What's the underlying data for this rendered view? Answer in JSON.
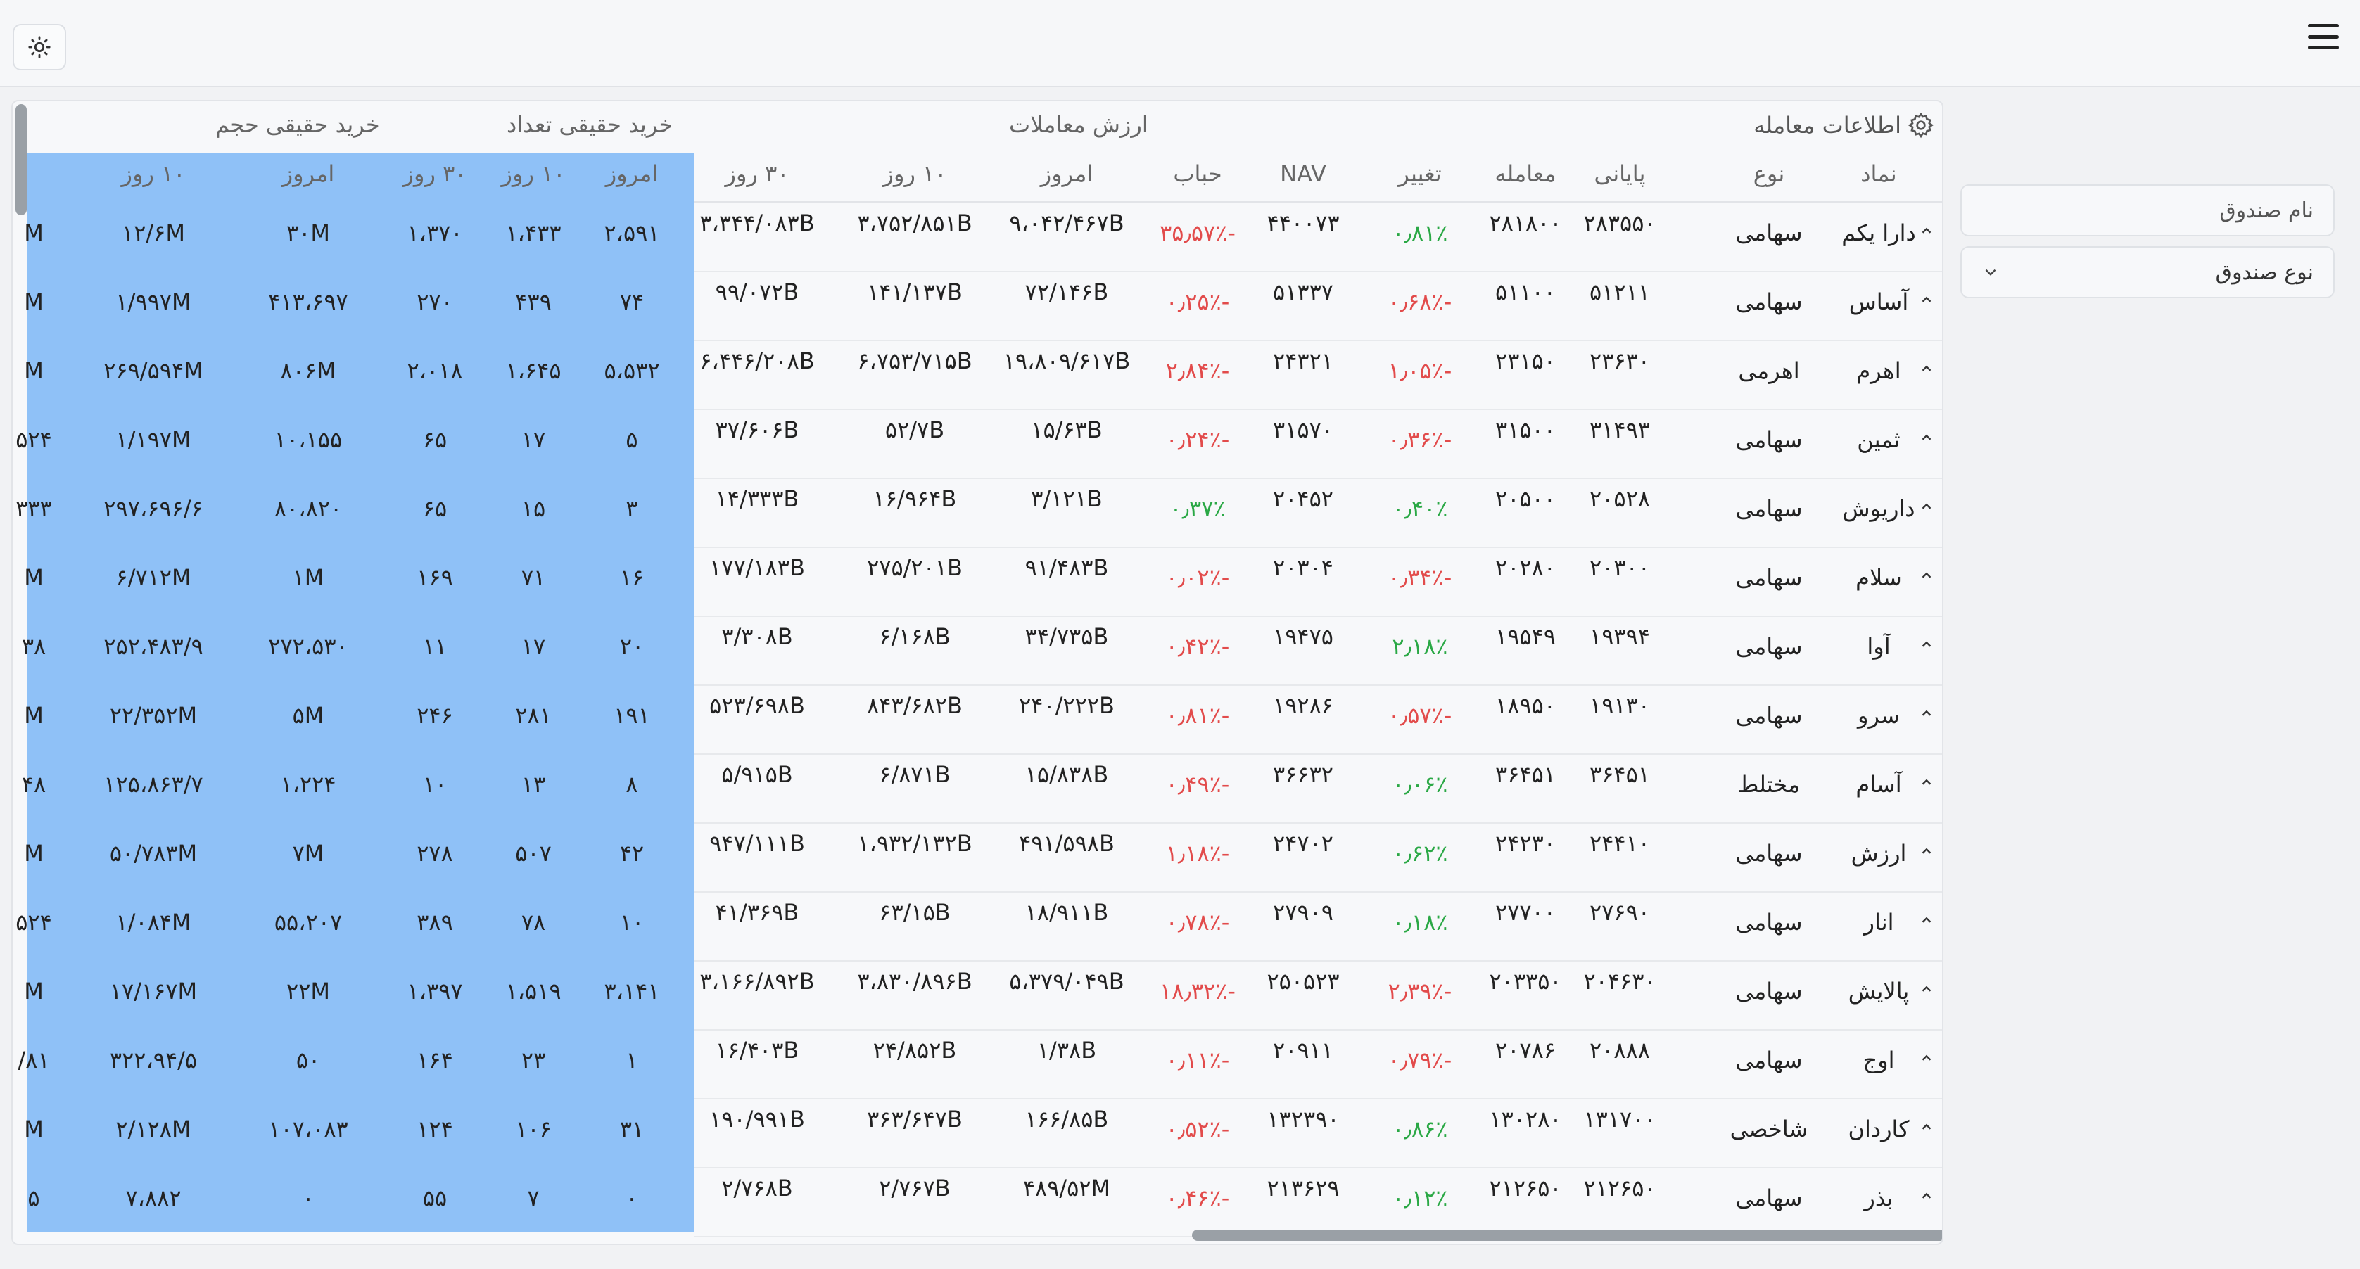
{
  "filters": {
    "fund_name_placeholder": "نام صندوق",
    "fund_type_label": "نوع صندوق"
  },
  "table": {
    "groups": {
      "trade_info": "اطلاعات معامله",
      "trade_value": "ارزش معاملات",
      "real_buy_count": "خرید حقیقی تعداد",
      "real_buy_volume": "خرید حقیقی حجم"
    },
    "headers": {
      "symbol": "نماد",
      "type": "نوع",
      "final": "پایانی",
      "trade": "معامله",
      "change": "تغییر",
      "nav": "NAV",
      "bubble": "حباب",
      "tv_today": "امروز",
      "tv_10d": "۱۰ روز",
      "tv_30d": "۳۰ روز",
      "rc_today": "امروز",
      "rc_10d": "۱۰ روز",
      "rc_30d": "۳۰ روز",
      "rv_today": "امروز",
      "rv_10d": "۱۰ روز"
    },
    "rows": [
      {
        "symbol": "دارا یکم",
        "type": "سهامی",
        "final": "۲۸۳۵۵۰",
        "trade": "۲۸۱۸۰۰",
        "change": "۰٫۸۱٪",
        "change_sign": "pos",
        "nav": "۴۴۰۰۷۳",
        "bubble": "-۳۵٫۵۷٪",
        "tv_today": "۹،۰۴۲/۴۶۷B",
        "tv_10d": "۳،۷۵۲/۸۵۱B",
        "tv_30d": "۳،۳۴۴/۰۸۳B",
        "rc_today": "۲،۵۹۱",
        "rc_10d": "۱،۴۳۳",
        "rc_30d": "۱،۳۷۰",
        "rv_today": "۳۰M",
        "rv_10d": "۱۲/۶M",
        "rv_30d": "M"
      },
      {
        "symbol": "آساس",
        "type": "سهامی",
        "final": "۵۱۲۱۱",
        "trade": "۵۱۱۰۰",
        "change": "-۰٫۶۸٪",
        "change_sign": "neg",
        "nav": "۵۱۳۳۷",
        "bubble": "-۰٫۲۵٪",
        "tv_today": "۷۲/۱۴۶B",
        "tv_10d": "۱۴۱/۱۳۷B",
        "tv_30d": "۹۹/۰۷۲B",
        "rc_today": "۷۴",
        "rc_10d": "۴۳۹",
        "rc_30d": "۲۷۰",
        "rv_today": "۴۱۳،۶۹۷",
        "rv_10d": "۱/۹۹۷M",
        "rv_30d": "M"
      },
      {
        "symbol": "اهرم",
        "type": "اهرمی",
        "final": "۲۳۶۳۰",
        "trade": "۲۳۱۵۰",
        "change": "-۱٫۰۵٪",
        "change_sign": "neg",
        "nav": "۲۴۳۲۱",
        "bubble": "-۲٫۸۴٪",
        "tv_today": "۱۹،۸۰۹/۶۱۷B",
        "tv_10d": "۶،۷۵۳/۷۱۵B",
        "tv_30d": "۶،۴۴۶/۲۰۸B",
        "rc_today": "۵،۵۳۲",
        "rc_10d": "۱،۶۴۵",
        "rc_30d": "۲،۰۱۸",
        "rv_today": "۸۰۶M",
        "rv_10d": "۲۶۹/۵۹۴M",
        "rv_30d": "M"
      },
      {
        "symbol": "ثمین",
        "type": "سهامی",
        "final": "۳۱۴۹۳",
        "trade": "۳۱۵۰۰",
        "change": "-۰٫۳۶٪",
        "change_sign": "neg",
        "nav": "۳۱۵۷۰",
        "bubble": "-۰٫۲۴٪",
        "tv_today": "۱۵/۶۳B",
        "tv_10d": "۵۲/۷B",
        "tv_30d": "۳۷/۶۰۶B",
        "rc_today": "۵",
        "rc_10d": "۱۷",
        "rc_30d": "۶۵",
        "rv_today": "۱۰،۱۵۵",
        "rv_10d": "۱/۱۹۷M",
        "rv_30d": "۵۲۴"
      },
      {
        "symbol": "داریوش",
        "type": "سهامی",
        "final": "۲۰۵۲۸",
        "trade": "۲۰۵۰۰",
        "change": "۰٫۴۰٪",
        "change_sign": "pos",
        "nav": "۲۰۴۵۲",
        "bubble": "۰٫۳۷٪",
        "bubble_sign": "pos",
        "tv_today": "۳/۱۲۱B",
        "tv_10d": "۱۶/۹۶۴B",
        "tv_30d": "۱۴/۳۳۳B",
        "rc_today": "۳",
        "rc_10d": "۱۵",
        "rc_30d": "۶۵",
        "rv_today": "۸۰،۸۲۰",
        "rv_10d": "۲۹۷،۶۹۶/۶",
        "rv_30d": "۳۳۳"
      },
      {
        "symbol": "سلام",
        "type": "سهامی",
        "final": "۲۰۳۰۰",
        "trade": "۲۰۲۸۰",
        "change": "-۰٫۳۴٪",
        "change_sign": "neg",
        "nav": "۲۰۳۰۴",
        "bubble": "-۰٫۰۲٪",
        "tv_today": "۹۱/۴۸۳B",
        "tv_10d": "۲۷۵/۲۰۱B",
        "tv_30d": "۱۷۷/۱۸۳B",
        "rc_today": "۱۶",
        "rc_10d": "۷۱",
        "rc_30d": "۱۶۹",
        "rv_today": "۱M",
        "rv_10d": "۶/۷۱۲M",
        "rv_30d": "M"
      },
      {
        "symbol": "آوا",
        "type": "سهامی",
        "final": "۱۹۳۹۴",
        "trade": "۱۹۵۴۹",
        "change": "۲٫۱۸٪",
        "change_sign": "pos",
        "nav": "۱۹۴۷۵",
        "bubble": "-۰٫۴۲٪",
        "tv_today": "۳۴/۷۳۵B",
        "tv_10d": "۶/۱۶۸B",
        "tv_30d": "۳/۳۰۸B",
        "rc_today": "۲۰",
        "rc_10d": "۱۷",
        "rc_30d": "۱۱",
        "rv_today": "۲۷۲،۵۳۰",
        "rv_10d": "۲۵۲،۴۸۳/۹",
        "rv_30d": "۳۸"
      },
      {
        "symbol": "سرو",
        "type": "سهامی",
        "final": "۱۹۱۳۰",
        "trade": "۱۸۹۵۰",
        "change": "-۰٫۵۷٪",
        "change_sign": "neg",
        "nav": "۱۹۲۸۶",
        "bubble": "-۰٫۸۱٪",
        "tv_today": "۲۴۰/۲۲۲B",
        "tv_10d": "۸۴۳/۶۸۲B",
        "tv_30d": "۵۲۳/۶۹۸B",
        "rc_today": "۱۹۱",
        "rc_10d": "۲۸۱",
        "rc_30d": "۲۴۶",
        "rv_today": "۵M",
        "rv_10d": "۲۲/۳۵۲M",
        "rv_30d": "M"
      },
      {
        "symbol": "آسام",
        "type": "مختلط",
        "final": "۳۶۴۵۱",
        "trade": "۳۶۴۵۱",
        "change": "۰٫۰۶٪",
        "change_sign": "pos",
        "nav": "۳۶۶۳۲",
        "bubble": "-۰٫۴۹٪",
        "tv_today": "۱۵/۸۳۸B",
        "tv_10d": "۶/۸۷۱B",
        "tv_30d": "۵/۹۱۵B",
        "rc_today": "۸",
        "rc_10d": "۱۳",
        "rc_30d": "۱۰",
        "rv_today": "۱،۲۲۴",
        "rv_10d": "۱۲۵،۸۶۳/۷",
        "rv_30d": "۴۸"
      },
      {
        "symbol": "ارزش",
        "type": "سهامی",
        "final": "۲۴۴۱۰",
        "trade": "۲۴۲۳۰",
        "change": "۰٫۶۲٪",
        "change_sign": "pos",
        "nav": "۲۴۷۰۲",
        "bubble": "-۱٫۱۸٪",
        "tv_today": "۴۹۱/۵۹۸B",
        "tv_10d": "۱،۹۳۲/۱۳۲B",
        "tv_30d": "۹۴۷/۱۱۱B",
        "rc_today": "۴۲",
        "rc_10d": "۵۰۷",
        "rc_30d": "۲۷۸",
        "rv_today": "۷M",
        "rv_10d": "۵۰/۷۸۳M",
        "rv_30d": "M"
      },
      {
        "symbol": "انار",
        "type": "سهامی",
        "final": "۲۷۶۹۰",
        "trade": "۲۷۷۰۰",
        "change": "۰٫۱۸٪",
        "change_sign": "pos",
        "nav": "۲۷۹۰۹",
        "bubble": "-۰٫۷۸٪",
        "tv_today": "۱۸/۹۱۱B",
        "tv_10d": "۶۳/۱۵B",
        "tv_30d": "۴۱/۳۶۹B",
        "rc_today": "۱۰",
        "rc_10d": "۷۸",
        "rc_30d": "۳۸۹",
        "rv_today": "۵۵،۲۰۷",
        "rv_10d": "۱/۰۸۴M",
        "rv_30d": "۵۲۴"
      },
      {
        "symbol": "پالایش",
        "type": "سهامی",
        "final": "۲۰۴۶۳۰",
        "trade": "۲۰۳۳۵۰",
        "change": "-۲٫۳۹٪",
        "change_sign": "neg",
        "nav": "۲۵۰۵۲۳",
        "bubble": "-۱۸٫۳۲٪",
        "tv_today": "۵،۳۷۹/۰۴۹B",
        "tv_10d": "۳،۸۳۰/۸۹۶B",
        "tv_30d": "۳،۱۶۶/۸۹۲B",
        "rc_today": "۳،۱۴۱",
        "rc_10d": "۱،۵۱۹",
        "rc_30d": "۱،۳۹۷",
        "rv_today": "۲۲M",
        "rv_10d": "۱۷/۱۶۷M",
        "rv_30d": "M"
      },
      {
        "symbol": "اوج",
        "type": "سهامی",
        "final": "۲۰۸۸۸",
        "trade": "۲۰۷۸۶",
        "change": "-۰٫۷۹٪",
        "change_sign": "neg",
        "nav": "۲۰۹۱۱",
        "bubble": "-۰٫۱۱٪",
        "tv_today": "۱/۳۸B",
        "tv_10d": "۲۴/۸۵۲B",
        "tv_30d": "۱۶/۴۰۳B",
        "rc_today": "۱",
        "rc_10d": "۲۳",
        "rc_30d": "۱۶۴",
        "rv_today": "۵۰",
        "rv_10d": "۳۲۲،۹۴/۵",
        "rv_30d": "۸۱/"
      },
      {
        "symbol": "کاردان",
        "type": "شاخصی",
        "final": "۱۳۱۷۰۰",
        "trade": "۱۳۰۲۸۰",
        "change": "۰٫۸۶٪",
        "change_sign": "pos",
        "nav": "۱۳۲۳۹۰",
        "bubble": "-۰٫۵۲٪",
        "tv_today": "۱۶۶/۸۵B",
        "tv_10d": "۳۶۳/۶۴۷B",
        "tv_30d": "۱۹۰/۹۹۱B",
        "rc_today": "۳۱",
        "rc_10d": "۱۰۶",
        "rc_30d": "۱۲۴",
        "rv_today": "۱۰۷،۰۸۳",
        "rv_10d": "۲/۱۲۸M",
        "rv_30d": "M"
      },
      {
        "symbol": "بذر",
        "type": "سهامی",
        "final": "۲۱۲۶۵۰",
        "trade": "۲۱۲۶۵۰",
        "change": "۰٫۱۲٪",
        "change_sign": "pos",
        "nav": "۲۱۳۶۲۹",
        "bubble": "-۰٫۴۶٪",
        "tv_today": "۴۸۹/۵۲M",
        "tv_10d": "۲/۷۶۷B",
        "tv_30d": "۲/۷۶۸B",
        "rc_today": "۰",
        "rc_10d": "۷",
        "rc_30d": "۵۵",
        "rv_today": "۰",
        "rv_10d": "۷،۸۸۲",
        "rv_30d": "۵"
      }
    ]
  },
  "colors": {
    "positive": "#2aa845",
    "negative": "#e24b4b",
    "highlight": "#8fc1f7"
  }
}
